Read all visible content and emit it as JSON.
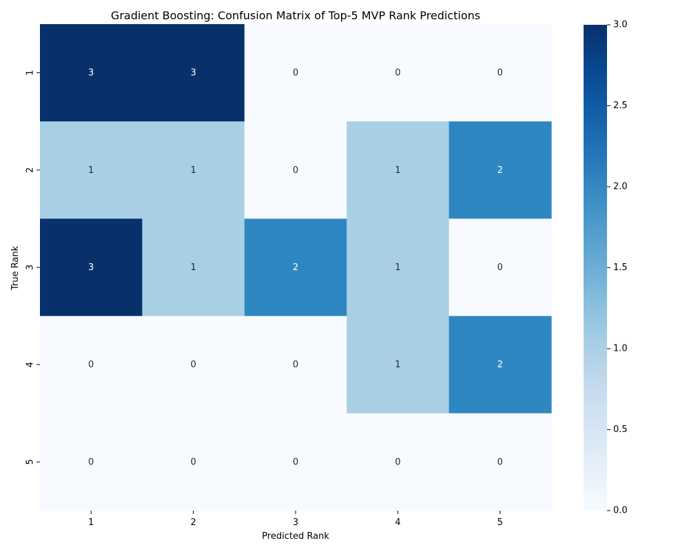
{
  "chart_data": {
    "type": "heatmap",
    "title": "Gradient Boosting: Confusion Matrix of Top-5 MVP Rank Predictions",
    "xlabel": "Predicted Rank",
    "ylabel": "True Rank",
    "x_categories": [
      "1",
      "2",
      "3",
      "4",
      "5"
    ],
    "y_categories": [
      "1",
      "2",
      "3",
      "4",
      "5"
    ],
    "values": [
      [
        3,
        3,
        0,
        0,
        0
      ],
      [
        1,
        1,
        0,
        1,
        2
      ],
      [
        3,
        1,
        2,
        1,
        0
      ],
      [
        0,
        0,
        0,
        1,
        2
      ],
      [
        0,
        0,
        0,
        0,
        0
      ]
    ],
    "colorbar": {
      "min": 0,
      "max": 3,
      "ticks": [
        "0.0",
        "0.5",
        "1.0",
        "1.5",
        "2.0",
        "2.5",
        "3.0"
      ]
    },
    "colormap": "Blues",
    "colors": {
      "0": "#f7fbff",
      "1": "#a9cfe5",
      "2": "#2f87c1",
      "3": "#08306b"
    },
    "annotation_colors": {
      "light": "#ffffff",
      "dark": "#262626"
    }
  }
}
